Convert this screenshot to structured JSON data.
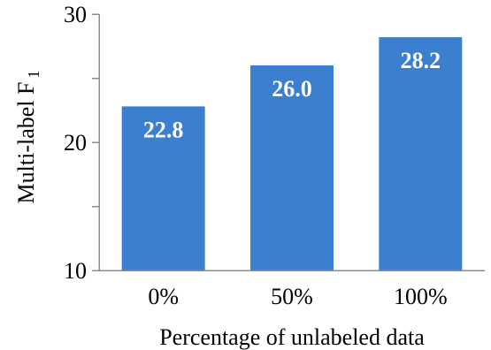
{
  "chart_data": {
    "type": "bar",
    "categories": [
      "0%",
      "50%",
      "100%"
    ],
    "values": [
      22.8,
      26.0,
      28.2
    ],
    "data_labels": [
      "22.8",
      "26.0",
      "28.2"
    ],
    "xlabel": "Percentage of unlabeled data",
    "ylabel": "Multi-label F",
    "ylabel_subscript": "1",
    "ylim": [
      10,
      30
    ],
    "yticks": [
      10,
      20,
      30
    ],
    "ytick_labels": [
      "10",
      "20",
      "30"
    ],
    "grid": false,
    "bar_color": "#3a7fd0"
  }
}
